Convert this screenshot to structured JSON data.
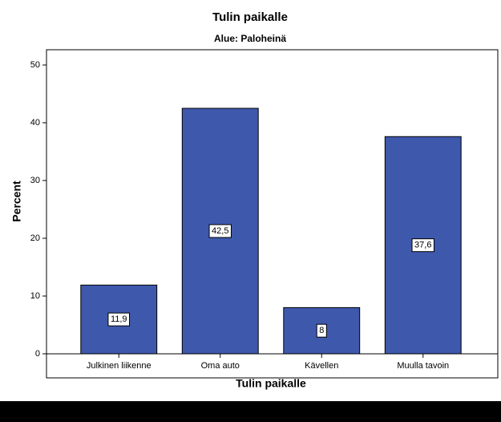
{
  "chart_data": {
    "type": "bar",
    "title": "Tulin paikalle",
    "subtitle": "Alue: Paloheinä",
    "x_label": "Tulin paikalle",
    "y_label": "Percent",
    "categories": [
      "Julkinen liikenne",
      "Oma auto",
      "Kävellen",
      "Muulla tavoin"
    ],
    "values": [
      11.9,
      42.5,
      8,
      37.6
    ],
    "value_labels": [
      "11,9",
      "42,5",
      "8",
      "37,6"
    ],
    "color": "#3e58ac",
    "ylim": [
      0,
      50
    ],
    "yticks": [
      0,
      10,
      20,
      30,
      40,
      50
    ],
    "grid": false
  }
}
